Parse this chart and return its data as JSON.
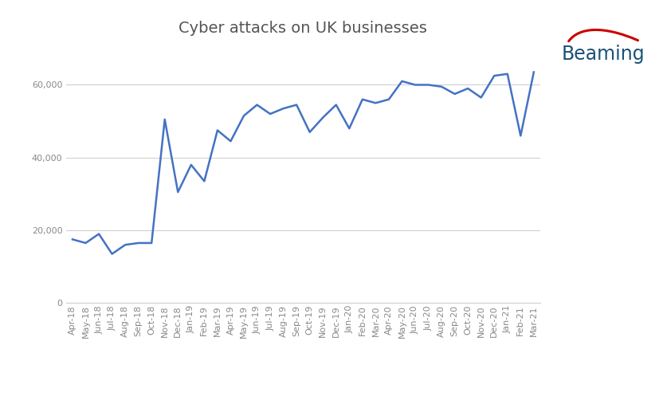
{
  "title": "Cyber attacks on UK businesses",
  "line_color": "#4472C4",
  "background_color": "#ffffff",
  "grid_color": "#d0d0d0",
  "text_color": "#888888",
  "title_color": "#555555",
  "beaming_color": "#1a5276",
  "swoosh_color": "#cc0000",
  "labels": [
    "Apr-18",
    "May-18",
    "Jun-18",
    "Jul-18",
    "Aug-18",
    "Sep-18",
    "Oct-18",
    "Nov-18",
    "Dec-18",
    "Jan-19",
    "Feb-19",
    "Mar-19",
    "Apr-19",
    "May-19",
    "Jun-19",
    "Jul-19",
    "Aug-19",
    "Sep-19",
    "Oct-19",
    "Nov-19",
    "Dec-19",
    "Jan-20",
    "Feb-20",
    "Mar-20",
    "Apr-20",
    "May-20",
    "Jun-20",
    "Jul-20",
    "Aug-20",
    "Sep-20",
    "Oct-20",
    "Nov-20",
    "Dec-20",
    "Jan-21",
    "Feb-21",
    "Mar-21"
  ],
  "values": [
    17500,
    16500,
    19000,
    13500,
    16000,
    16500,
    16500,
    50500,
    30500,
    38000,
    33500,
    47500,
    44500,
    51500,
    54500,
    52000,
    53500,
    54500,
    47000,
    51000,
    54500,
    48000,
    56000,
    55000,
    56000,
    61000,
    60000,
    60000,
    59500,
    57500,
    59000,
    56500,
    62500,
    63000,
    46000,
    63500
  ],
  "yticks": [
    0,
    20000,
    40000,
    60000
  ],
  "ylim": [
    0,
    70000
  ],
  "title_fontsize": 14,
  "tick_fontsize": 8,
  "ytick_labels": [
    "0",
    "20,000",
    "40,000",
    "60,000"
  ]
}
